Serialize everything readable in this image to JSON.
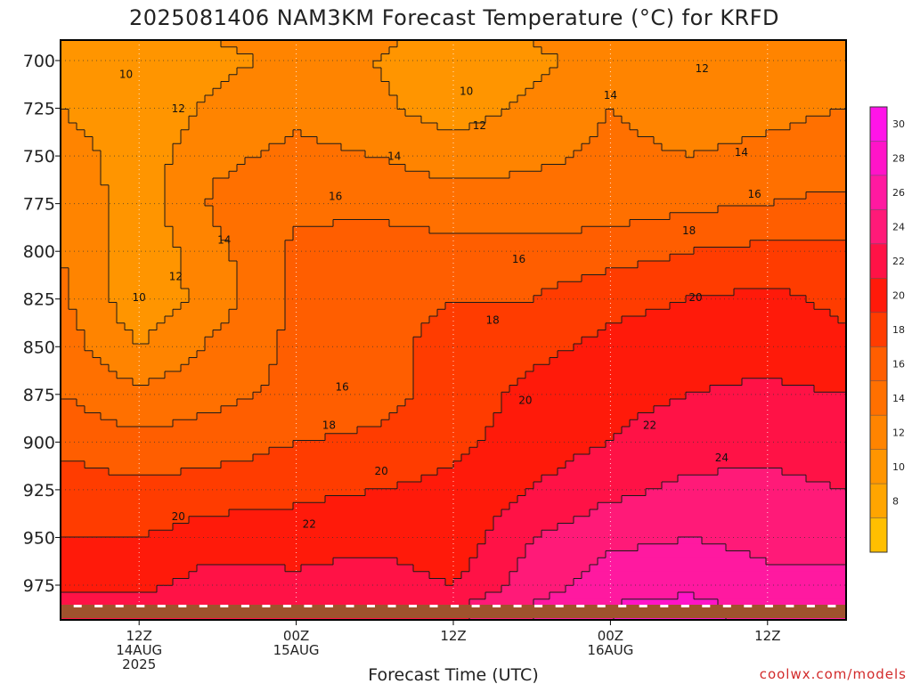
{
  "chart_data": {
    "type": "heatmap",
    "title": "2025081406 NAM3KM Forecast Temperature (°C) for KRFD",
    "xlabel": "Forecast Time (UTC)",
    "ylabel": "",
    "y_ticks": [
      700,
      725,
      750,
      775,
      800,
      825,
      850,
      875,
      900,
      925,
      950,
      975
    ],
    "y_range_hPa": [
      690,
      985
    ],
    "x_range_hours": [
      0,
      60
    ],
    "x_ticks": [
      {
        "hour": 6,
        "lines": [
          "12Z",
          "14AUG",
          "2025"
        ]
      },
      {
        "hour": 18,
        "lines": [
          "00Z",
          "15AUG"
        ]
      },
      {
        "hour": 30,
        "lines": [
          "12Z"
        ]
      },
      {
        "hour": 42,
        "lines": [
          "00Z",
          "16AUG"
        ]
      },
      {
        "hour": 54,
        "lines": [
          "12Z"
        ]
      }
    ],
    "grid": true,
    "colorbar": {
      "levels": [
        6,
        8,
        10,
        12,
        14,
        16,
        18,
        20,
        22,
        24,
        26,
        28,
        30,
        32
      ],
      "tick_labels": [
        8,
        10,
        12,
        14,
        16,
        18,
        20,
        22,
        24,
        26,
        28,
        30
      ],
      "colors": [
        "#ffbf00",
        "#ffa500",
        "#ff9500",
        "#ff8400",
        "#ff7000",
        "#ff5e00",
        "#ff3c00",
        "#ff1a0a",
        "#ff1246",
        "#ff1a78",
        "#ff19a0",
        "#ff14c8",
        "#ff14e8"
      ],
      "placement": "right"
    },
    "grid_times_hours": [
      0,
      6,
      12,
      18,
      24,
      30,
      36,
      42,
      48,
      54,
      60
    ],
    "grid_levels_hPa": [
      690,
      700,
      725,
      750,
      775,
      800,
      825,
      850,
      875,
      900,
      925,
      950,
      975,
      985
    ],
    "temperature_C": [
      [
        11.5,
        10.5,
        12.0,
        13.0,
        12.5,
        11.0,
        12.0,
        13.5,
        13.0,
        13.5,
        14.0
      ],
      [
        11.0,
        10.0,
        11.5,
        12.5,
        12.0,
        10.5,
        11.5,
        13.0,
        12.5,
        13.0,
        13.5
      ],
      [
        12.0,
        10.5,
        12.5,
        13.5,
        12.5,
        11.0,
        12.5,
        14.0,
        13.0,
        13.5,
        14.0
      ],
      [
        13.0,
        11.0,
        13.5,
        14.5,
        14.0,
        13.0,
        13.5,
        14.5,
        14.0,
        14.5,
        15.0
      ],
      [
        13.5,
        11.0,
        14.5,
        15.5,
        15.5,
        15.0,
        15.0,
        15.0,
        15.5,
        16.0,
        16.5
      ],
      [
        14.0,
        10.5,
        13.5,
        16.5,
        17.0,
        16.5,
        16.5,
        17.0,
        18.0,
        18.5,
        18.5
      ],
      [
        14.5,
        10.5,
        13.0,
        16.5,
        17.5,
        18.0,
        18.0,
        19.5,
        20.0,
        20.5,
        19.5
      ],
      [
        15.0,
        12.0,
        14.5,
        16.5,
        17.5,
        18.5,
        19.5,
        20.5,
        21.0,
        21.0,
        20.5
      ],
      [
        16.0,
        14.5,
        15.5,
        16.5,
        17.0,
        19.0,
        20.5,
        21.5,
        22.0,
        22.5,
        22.0
      ],
      [
        17.5,
        16.5,
        17.0,
        18.0,
        18.5,
        19.5,
        21.0,
        22.0,
        23.0,
        23.5,
        23.0
      ],
      [
        19.0,
        18.5,
        19.0,
        19.5,
        20.0,
        20.5,
        22.0,
        23.5,
        24.5,
        24.5,
        24.0
      ],
      [
        20.0,
        20.0,
        21.0,
        21.0,
        21.5,
        20.5,
        24.0,
        25.5,
        26.0,
        25.5,
        25.0
      ],
      [
        21.5,
        21.5,
        23.0,
        22.5,
        23.0,
        22.0,
        25.0,
        27.0,
        27.5,
        26.5,
        27.0
      ],
      [
        22.5,
        22.5,
        23.5,
        24.0,
        23.5,
        23.5,
        26.0,
        28.0,
        28.5,
        27.5,
        28.0
      ]
    ],
    "contour_labels": [
      {
        "text": "10",
        "hour": 5.0,
        "p": 709
      },
      {
        "text": "12",
        "hour": 9.0,
        "p": 727
      },
      {
        "text": "10",
        "hour": 31.0,
        "p": 718
      },
      {
        "text": "12",
        "hour": 32.0,
        "p": 736
      },
      {
        "text": "14",
        "hour": 42.0,
        "p": 720
      },
      {
        "text": "12",
        "hour": 49.0,
        "p": 706
      },
      {
        "text": "14",
        "hour": 25.5,
        "p": 752
      },
      {
        "text": "14",
        "hour": 52.0,
        "p": 750
      },
      {
        "text": "16",
        "hour": 21.0,
        "p": 773
      },
      {
        "text": "16",
        "hour": 53.0,
        "p": 772
      },
      {
        "text": "14",
        "hour": 12.5,
        "p": 796
      },
      {
        "text": "12",
        "hour": 8.8,
        "p": 815
      },
      {
        "text": "10",
        "hour": 6.0,
        "p": 826
      },
      {
        "text": "18",
        "hour": 48.0,
        "p": 791
      },
      {
        "text": "16",
        "hour": 35.0,
        "p": 806
      },
      {
        "text": "18",
        "hour": 33.0,
        "p": 838
      },
      {
        "text": "20",
        "hour": 48.5,
        "p": 826
      },
      {
        "text": "16",
        "hour": 21.5,
        "p": 873
      },
      {
        "text": "20",
        "hour": 35.5,
        "p": 880
      },
      {
        "text": "18",
        "hour": 20.5,
        "p": 893
      },
      {
        "text": "22",
        "hour": 45.0,
        "p": 893
      },
      {
        "text": "20",
        "hour": 24.5,
        "p": 917
      },
      {
        "text": "24",
        "hour": 50.5,
        "p": 910
      },
      {
        "text": "20",
        "hour": 9.0,
        "p": 941
      },
      {
        "text": "22",
        "hour": 19.0,
        "p": 945
      }
    ]
  },
  "credit": "coolwx.com/models"
}
